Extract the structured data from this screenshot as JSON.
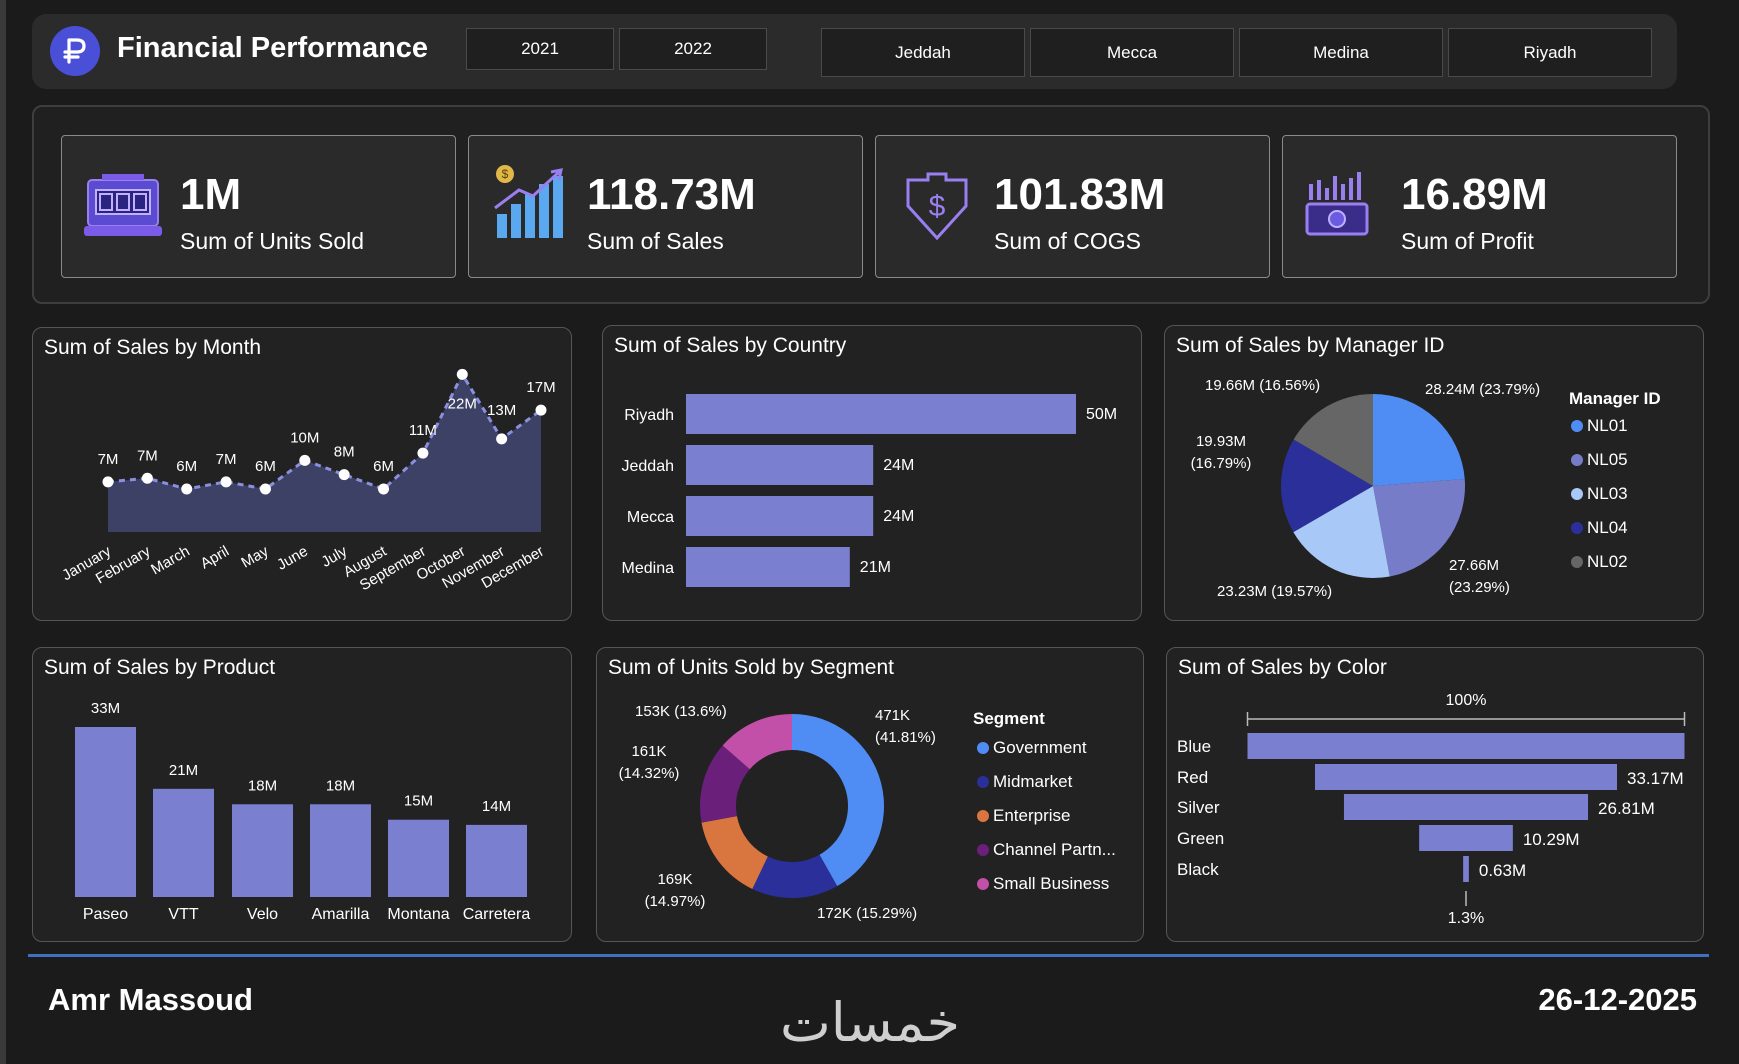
{
  "header": {
    "title": "Financial Performance",
    "years": [
      "2021",
      "2022"
    ],
    "cities": [
      "Jeddah",
      "Mecca",
      "Medina",
      "Riyadh"
    ]
  },
  "kpis": [
    {
      "value": "1M",
      "label": "Sum of Units Sold",
      "icon": "cash-register-icon"
    },
    {
      "value": "118.73M",
      "label": "Sum of Sales",
      "icon": "bar-growth-icon"
    },
    {
      "value": "101.83M",
      "label": "Sum of COGS",
      "icon": "dollar-shield-icon"
    },
    {
      "value": "16.89M",
      "label": "Sum of Profit",
      "icon": "money-chart-icon"
    }
  ],
  "cards": {
    "month": {
      "title": "Sum of Sales by Month"
    },
    "country": {
      "title": "Sum of Sales by Country"
    },
    "manager": {
      "title": "Sum of Sales by Manager ID",
      "legend_title": "Manager ID"
    },
    "product": {
      "title": "Sum of Sales by Product"
    },
    "segment": {
      "title": "Sum of Units Sold by Segment",
      "legend_title": "Segment"
    },
    "color": {
      "title": "Sum of Sales by Color"
    }
  },
  "footer": {
    "author": "Amr Massoud",
    "date": "26-12-2025",
    "brand": "خمسات"
  },
  "colors": {
    "bar": "#7a7fcf",
    "accent": "#3f6fbf",
    "area": "#3e4166"
  },
  "chart_data": [
    {
      "type": "area",
      "title": "Sum of Sales by Month",
      "categories": [
        "January",
        "February",
        "March",
        "April",
        "May",
        "June",
        "July",
        "August",
        "September",
        "October",
        "November",
        "December"
      ],
      "values": [
        7,
        7.5,
        6,
        7,
        6,
        10,
        8,
        6,
        11,
        22,
        13,
        17
      ],
      "labels": [
        "7M",
        "7M",
        "6M",
        "7M",
        "6M",
        "10M",
        "8M",
        "6M",
        "11M",
        "22M",
        "13M",
        "17M"
      ],
      "ylim": [
        0,
        24
      ]
    },
    {
      "type": "bar",
      "orientation": "horizontal",
      "title": "Sum of Sales by Country",
      "categories": [
        "Riyadh",
        "Jeddah",
        "Mecca",
        "Medina"
      ],
      "values": [
        50,
        24,
        24,
        21
      ],
      "labels": [
        "50M",
        "24M",
        "24M",
        "21M"
      ]
    },
    {
      "type": "pie",
      "title": "Sum of Sales by Manager ID",
      "legend": [
        "NL01",
        "NL05",
        "NL03",
        "NL04",
        "NL02"
      ],
      "slices": [
        {
          "name": "NL01",
          "value": 28.24,
          "label": "28.24M (23.79%)",
          "color": "#4f8df5"
        },
        {
          "name": "NL05",
          "value": 27.66,
          "label_lines": [
            "27.66M",
            "(23.29%)"
          ],
          "color": "#777cc8"
        },
        {
          "name": "NL03",
          "value": 23.23,
          "label": "23.23M (19.57%)",
          "color": "#a8c9f7"
        },
        {
          "name": "NL04",
          "value": 19.93,
          "label_lines": [
            "19.93M",
            "(16.79%)"
          ],
          "color": "#2a2f9a"
        },
        {
          "name": "NL02",
          "value": 19.66,
          "label": "19.66M (16.56%)",
          "color": "#666666"
        }
      ]
    },
    {
      "type": "bar",
      "title": "Sum of Sales by Product",
      "categories": [
        "Paseo",
        "VTT",
        "Velo",
        "Amarilla",
        "Montana",
        "Carretera"
      ],
      "values": [
        33,
        21,
        18,
        18,
        15,
        14
      ],
      "labels": [
        "33M",
        "21M",
        "18M",
        "18M",
        "15M",
        "14M"
      ]
    },
    {
      "type": "pie",
      "subtype": "donut",
      "title": "Sum of Units Sold by Segment",
      "legend": [
        "Government",
        "Midmarket",
        "Enterprise",
        "Channel Partn...",
        "Small Business"
      ],
      "slices": [
        {
          "name": "Government",
          "value": 471,
          "label_lines": [
            "471K",
            "(41.81%)"
          ],
          "color": "#4f8df5"
        },
        {
          "name": "Midmarket",
          "value": 172,
          "label": "172K (15.29%)",
          "color": "#2a2f9a"
        },
        {
          "name": "Enterprise",
          "value": 169,
          "label_lines": [
            "169K",
            "(14.97%)"
          ],
          "color": "#d9763f"
        },
        {
          "name": "Channel Partners",
          "value": 161,
          "label_lines": [
            "161K",
            "(14.32%)"
          ],
          "color": "#6a1f7a"
        },
        {
          "name": "Small Business",
          "value": 153,
          "label": "153K (13.6%)",
          "color": "#c24fa8"
        }
      ]
    },
    {
      "type": "bar",
      "subtype": "funnel",
      "title": "Sum of Sales by Color",
      "categories": [
        "Blue",
        "Red",
        "Silver",
        "Green",
        "Black"
      ],
      "values": [
        48,
        33.17,
        26.81,
        10.29,
        0.63
      ],
      "labels": [
        "",
        "33.17M",
        "26.81M",
        "10.29M",
        "0.63M"
      ],
      "top_label": "100%",
      "bottom_label": "1.3%"
    }
  ]
}
